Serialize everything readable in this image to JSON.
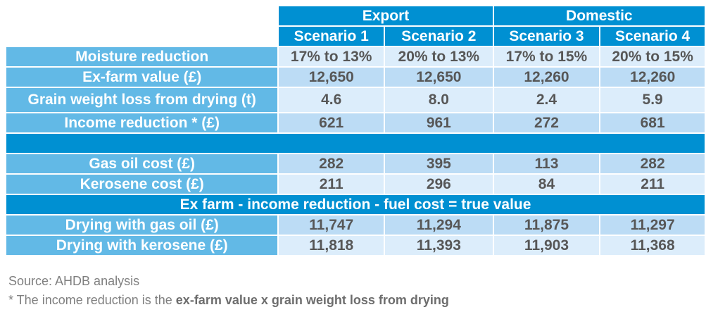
{
  "table": {
    "groups": [
      {
        "label": "Export"
      },
      {
        "label": "Domestic"
      }
    ],
    "scenarios": [
      "Scenario 1",
      "Scenario 2",
      "Scenario 3",
      "Scenario 4"
    ],
    "rows_top": [
      {
        "label": "Moisture reduction",
        "values": [
          "17% to 13%",
          "20% to 13%",
          "17% to 15%",
          "20% to 15%"
        ]
      },
      {
        "label": "Ex-farm value (£)",
        "values": [
          "12,650",
          "12,650",
          "12,260",
          "12,260"
        ]
      },
      {
        "label": "Grain weight loss from drying (t)",
        "values": [
          "4.6",
          "8.0",
          "2.4",
          "5.9"
        ]
      },
      {
        "label": "Income reduction * (£)",
        "values": [
          "621",
          "961",
          "272",
          "681"
        ]
      }
    ],
    "rows_fuel": [
      {
        "label": "Gas oil cost (£)",
        "values": [
          "282",
          "395",
          "113",
          "282"
        ]
      },
      {
        "label": "Kerosene cost (£)",
        "values": [
          "211",
          "296",
          "84",
          "211"
        ]
      }
    ],
    "formula": "Ex farm - income reduction - fuel cost = true value",
    "rows_result": [
      {
        "label": "Drying with gas oil (£)",
        "values": [
          "11,747",
          "11,294",
          "11,875",
          "11,297"
        ]
      },
      {
        "label": "Drying with kerosene (£)",
        "values": [
          "11,818",
          "11,393",
          "11,903",
          "11,368"
        ]
      }
    ]
  },
  "footer": {
    "source": "Source: AHDB analysis",
    "note_prefix": "* The income reduction is the ",
    "note_bold": "ex-farm value x grain weight loss from drying"
  }
}
